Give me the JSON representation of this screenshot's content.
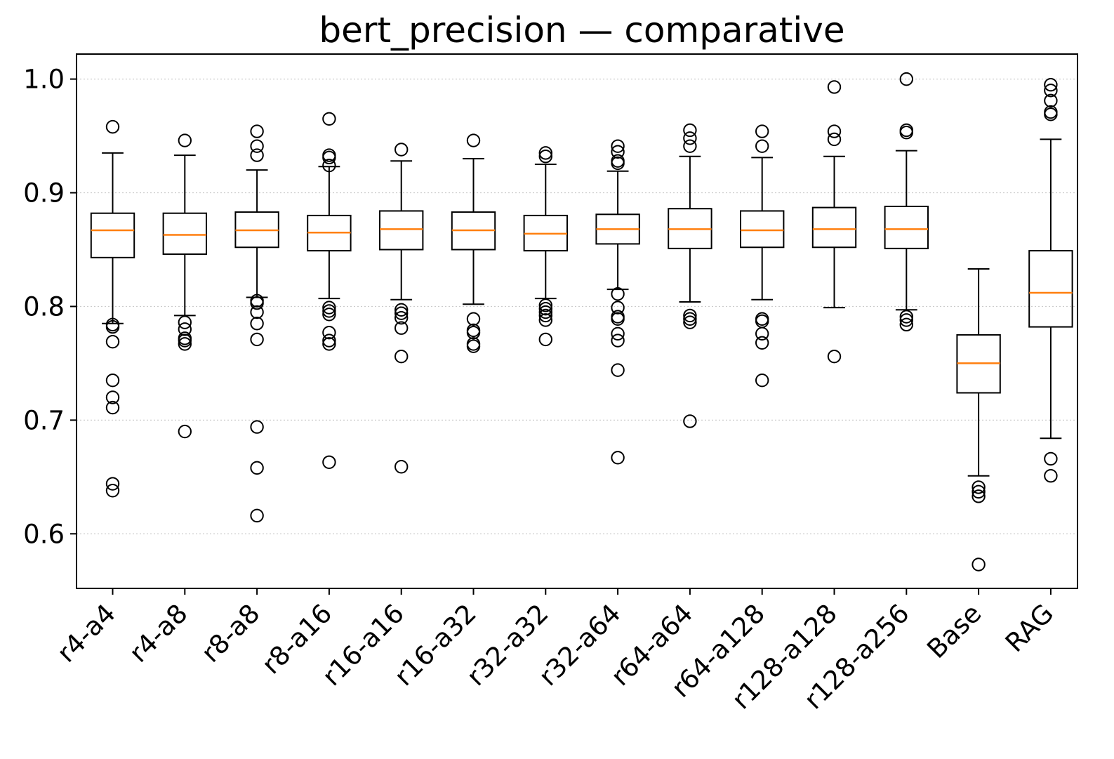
{
  "chart_data": {
    "type": "box",
    "title": "bert_precision — comparative",
    "xlabel": "",
    "ylabel": "",
    "ylim": [
      0.552,
      1.022
    ],
    "yticks": [
      "0.6",
      "0.7",
      "0.8",
      "0.9",
      "1.0"
    ],
    "ytick_values": [
      0.6,
      0.7,
      0.8,
      0.9,
      1.0
    ],
    "grid": "horizontal-dotted",
    "colors": {
      "box": "#000000",
      "median": "#ff7f0e",
      "grid": "#cccccc"
    },
    "categories": [
      "r4-a4",
      "r4-a8",
      "r8-a8",
      "r8-a16",
      "r16-a16",
      "r16-a32",
      "r32-a32",
      "r32-a64",
      "r64-a64",
      "r64-a128",
      "r128-a128",
      "r128-a256",
      "Base",
      "RAG"
    ],
    "boxes": [
      {
        "whisker_low": 0.785,
        "q1": 0.843,
        "median": 0.867,
        "q3": 0.882,
        "whisker_high": 0.935,
        "fliers": [
          0.958,
          0.784,
          0.782,
          0.769,
          0.735,
          0.72,
          0.711,
          0.644,
          0.638
        ]
      },
      {
        "whisker_low": 0.792,
        "q1": 0.846,
        "median": 0.863,
        "q3": 0.882,
        "whisker_high": 0.933,
        "fliers": [
          0.946,
          0.786,
          0.78,
          0.772,
          0.77,
          0.767,
          0.69
        ]
      },
      {
        "whisker_low": 0.808,
        "q1": 0.852,
        "median": 0.867,
        "q3": 0.883,
        "whisker_high": 0.92,
        "fliers": [
          0.954,
          0.941,
          0.933,
          0.805,
          0.803,
          0.795,
          0.785,
          0.771,
          0.694,
          0.658,
          0.616
        ]
      },
      {
        "whisker_low": 0.807,
        "q1": 0.849,
        "median": 0.865,
        "q3": 0.88,
        "whisker_high": 0.923,
        "fliers": [
          0.965,
          0.933,
          0.931,
          0.924,
          0.799,
          0.796,
          0.793,
          0.777,
          0.77,
          0.767,
          0.663
        ]
      },
      {
        "whisker_low": 0.806,
        "q1": 0.85,
        "median": 0.868,
        "q3": 0.884,
        "whisker_high": 0.928,
        "fliers": [
          0.938,
          0.797,
          0.794,
          0.79,
          0.781,
          0.756,
          0.659
        ]
      },
      {
        "whisker_low": 0.802,
        "q1": 0.85,
        "median": 0.867,
        "q3": 0.883,
        "whisker_high": 0.93,
        "fliers": [
          0.946,
          0.789,
          0.779,
          0.777,
          0.767,
          0.765
        ]
      },
      {
        "whisker_low": 0.807,
        "q1": 0.849,
        "median": 0.864,
        "q3": 0.88,
        "whisker_high": 0.925,
        "fliers": [
          0.935,
          0.932,
          0.801,
          0.798,
          0.795,
          0.792,
          0.788,
          0.771
        ]
      },
      {
        "whisker_low": 0.815,
        "q1": 0.855,
        "median": 0.868,
        "q3": 0.881,
        "whisker_high": 0.919,
        "fliers": [
          0.941,
          0.936,
          0.928,
          0.926,
          0.811,
          0.799,
          0.791,
          0.789,
          0.776,
          0.77,
          0.744,
          0.667
        ]
      },
      {
        "whisker_low": 0.804,
        "q1": 0.851,
        "median": 0.868,
        "q3": 0.886,
        "whisker_high": 0.932,
        "fliers": [
          0.955,
          0.948,
          0.941,
          0.792,
          0.789,
          0.786,
          0.699
        ]
      },
      {
        "whisker_low": 0.806,
        "q1": 0.852,
        "median": 0.867,
        "q3": 0.884,
        "whisker_high": 0.931,
        "fliers": [
          0.954,
          0.941,
          0.789,
          0.787,
          0.776,
          0.768,
          0.735
        ]
      },
      {
        "whisker_low": 0.799,
        "q1": 0.852,
        "median": 0.868,
        "q3": 0.887,
        "whisker_high": 0.932,
        "fliers": [
          0.993,
          0.954,
          0.947,
          0.756
        ]
      },
      {
        "whisker_low": 0.797,
        "q1": 0.851,
        "median": 0.868,
        "q3": 0.888,
        "whisker_high": 0.937,
        "fliers": [
          1.0,
          0.955,
          0.953,
          0.791,
          0.788,
          0.784
        ]
      },
      {
        "whisker_low": 0.651,
        "q1": 0.724,
        "median": 0.75,
        "q3": 0.775,
        "whisker_high": 0.833,
        "fliers": [
          0.641,
          0.637,
          0.633,
          0.573
        ]
      },
      {
        "whisker_low": 0.684,
        "q1": 0.782,
        "median": 0.812,
        "q3": 0.849,
        "whisker_high": 0.947,
        "fliers": [
          0.995,
          0.99,
          0.981,
          0.971,
          0.969,
          0.666,
          0.651
        ]
      }
    ]
  }
}
